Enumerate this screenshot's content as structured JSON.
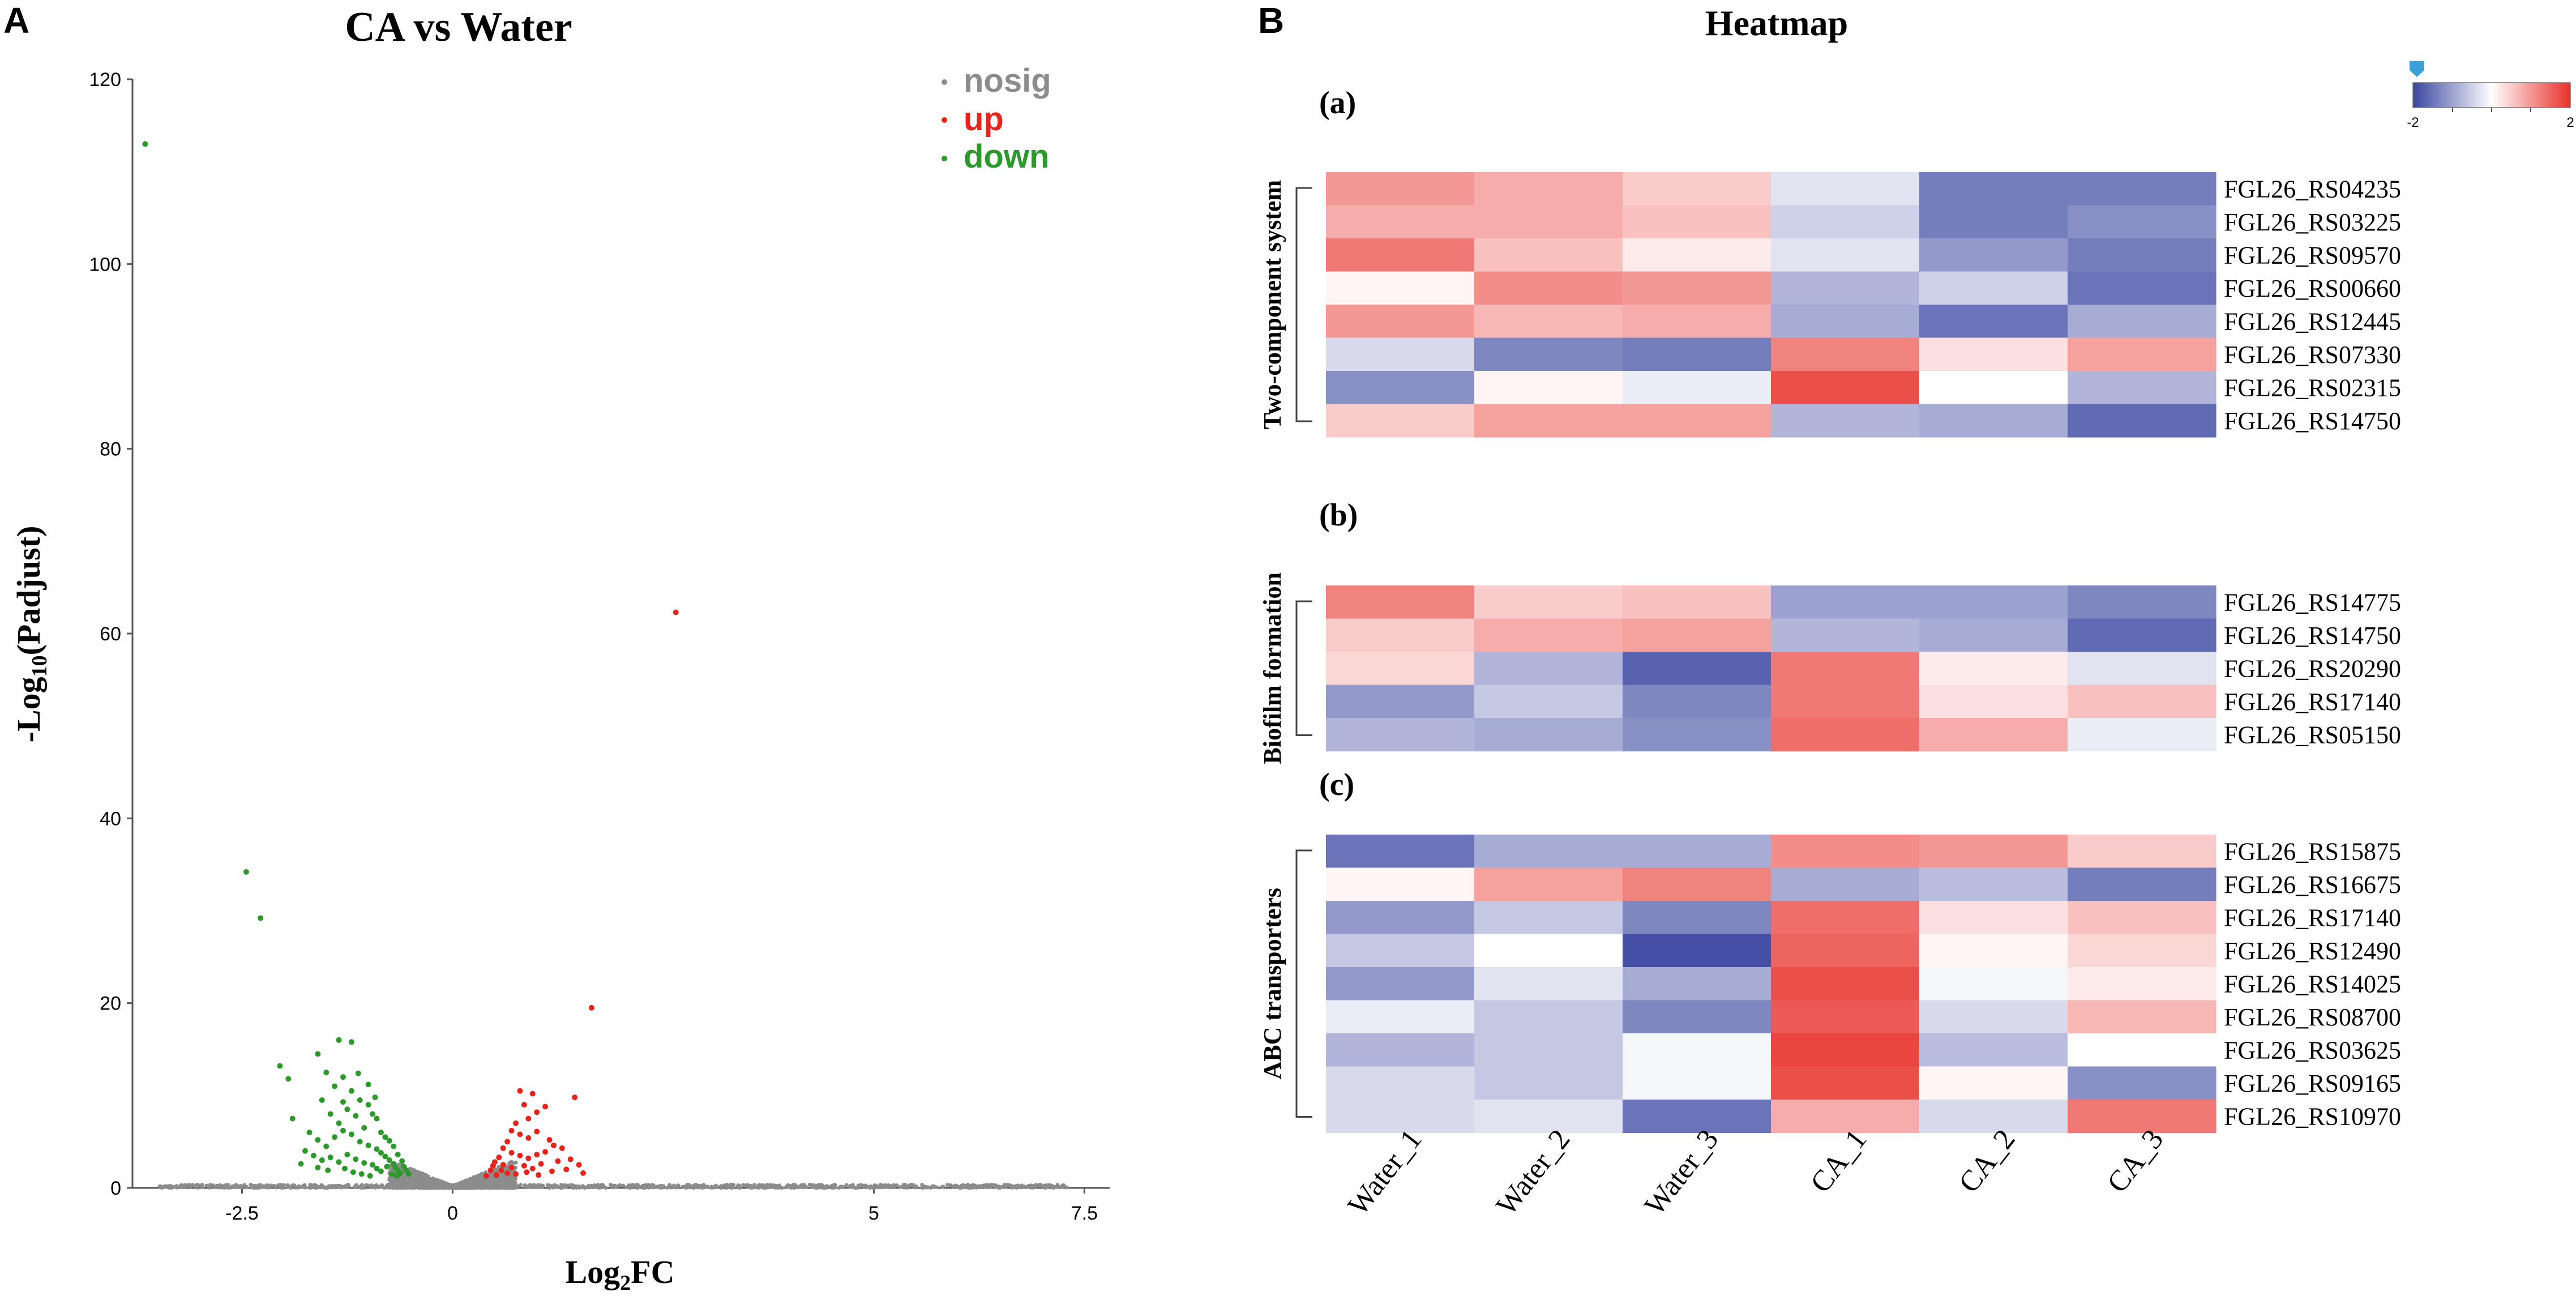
{
  "chart_data": [
    {
      "type": "scatter",
      "panel": "A",
      "title": "CA vs Water",
      "xlabel": "Log2FC",
      "ylabel": "-Log10(Padjust)",
      "xlim": [
        -3.8,
        7.8
      ],
      "ylim": [
        0,
        120
      ],
      "xticks": [
        -2.5,
        0,
        5,
        7.5
      ],
      "xtick_labels": [
        "-2.5",
        "0",
        "5",
        "7.5"
      ],
      "yticks": [
        0,
        20,
        40,
        60,
        80,
        100,
        120
      ],
      "ytick_labels": [
        "0",
        "20",
        "40",
        "60",
        "80",
        "100",
        "120"
      ],
      "legend": [
        {
          "name": "nosig",
          "color": "#8c8c8c"
        },
        {
          "name": "up",
          "color": "#e8231b"
        },
        {
          "name": "down",
          "color": "#2b9a2b"
        }
      ],
      "series": [
        {
          "name": "down",
          "color": "#2b9a2b",
          "points": [
            [
              -3.65,
              113
            ],
            [
              -2.45,
              34.2
            ],
            [
              -2.28,
              29.2
            ],
            [
              -1.9,
              7.5
            ],
            [
              -1.6,
              14.5
            ],
            [
              -1.35,
              16
            ],
            [
              -1.2,
              15.8
            ],
            [
              -1.5,
              12.5
            ],
            [
              -1.4,
              11
            ],
            [
              -1.3,
              12
            ],
            [
              -1.2,
              10.5
            ],
            [
              -1.1,
              9.5
            ],
            [
              -1.0,
              9
            ],
            [
              -0.95,
              8
            ],
            [
              -0.9,
              7.5
            ],
            [
              -1.55,
              9.5
            ],
            [
              -1.45,
              8
            ],
            [
              -1.35,
              7
            ],
            [
              -1.25,
              8.5
            ],
            [
              -1.15,
              7.8
            ],
            [
              -1.05,
              6.5
            ],
            [
              -0.85,
              6
            ],
            [
              -0.8,
              5.5
            ],
            [
              -1.7,
              6
            ],
            [
              -1.6,
              5.2
            ],
            [
              -1.5,
              4.5
            ],
            [
              -1.4,
              5.5
            ],
            [
              -1.3,
              6.2
            ],
            [
              -1.2,
              5.8
            ],
            [
              -1.1,
              5
            ],
            [
              -1.0,
              4.6
            ],
            [
              -0.9,
              4.2
            ],
            [
              -0.85,
              3.8
            ],
            [
              -0.8,
              3.4
            ],
            [
              -0.75,
              3
            ],
            [
              -0.7,
              2.6
            ],
            [
              -0.68,
              2.2
            ],
            [
              -0.65,
              1.9
            ],
            [
              -1.75,
              4
            ],
            [
              -1.65,
              3.5
            ],
            [
              -1.55,
              3
            ],
            [
              -1.45,
              3.3
            ],
            [
              -1.35,
              2.8
            ],
            [
              -1.25,
              3.6
            ],
            [
              -1.15,
              3.1
            ],
            [
              -1.05,
              2.7
            ],
            [
              -0.95,
              2.5
            ],
            [
              -0.9,
              2.1
            ],
            [
              -0.85,
              1.8
            ],
            [
              -0.78,
              2.3
            ],
            [
              -0.72,
              1.5
            ],
            [
              -0.66,
              1.3
            ],
            [
              -0.62,
              1.6
            ],
            [
              -1.8,
              2.6
            ],
            [
              -1.6,
              2.2
            ],
            [
              -1.48,
              1.9
            ],
            [
              -1.28,
              2.1
            ],
            [
              -1.18,
              1.7
            ],
            [
              -1.08,
              1.5
            ],
            [
              -0.98,
              1.3
            ],
            [
              -2.05,
              13.2
            ],
            [
              -1.95,
              11.8
            ],
            [
              -1.0,
              11.2
            ],
            [
              -0.92,
              9.8
            ],
            [
              -1.12,
              12.4
            ],
            [
              -1.3,
              9.3
            ],
            [
              -0.7,
              4.5
            ],
            [
              -0.75,
              5.1
            ],
            [
              -0.65,
              3.6
            ],
            [
              -0.6,
              2.9
            ],
            [
              -0.58,
              2.3
            ],
            [
              -0.55,
              1.9
            ],
            [
              -0.52,
              1.5
            ]
          ]
        },
        {
          "name": "up",
          "color": "#e8231b",
          "points": [
            [
              2.65,
              62.3
            ],
            [
              1.65,
              19.5
            ],
            [
              1.45,
              9.8
            ],
            [
              0.8,
              10.5
            ],
            [
              0.95,
              10.2
            ],
            [
              0.85,
              9
            ],
            [
              1.0,
              8.2
            ],
            [
              1.1,
              8.8
            ],
            [
              0.9,
              7.5
            ],
            [
              0.75,
              7
            ],
            [
              0.7,
              6.2
            ],
            [
              0.8,
              5.8
            ],
            [
              0.9,
              5.4
            ],
            [
              1.0,
              6.1
            ],
            [
              1.15,
              5.2
            ],
            [
              1.2,
              4.6
            ],
            [
              0.65,
              5
            ],
            [
              0.6,
              4.3
            ],
            [
              0.7,
              3.8
            ],
            [
              0.8,
              3.5
            ],
            [
              0.9,
              3.2
            ],
            [
              1.0,
              3.6
            ],
            [
              1.1,
              3.9
            ],
            [
              1.3,
              4.3
            ],
            [
              0.55,
              3.3
            ],
            [
              0.5,
              2.8
            ],
            [
              0.6,
              2.5
            ],
            [
              0.7,
              2.2
            ],
            [
              0.85,
              2.4
            ],
            [
              0.95,
              2.1
            ],
            [
              1.05,
              2.6
            ],
            [
              1.25,
              2.9
            ],
            [
              1.4,
              3.1
            ],
            [
              1.5,
              2.5
            ],
            [
              1.35,
              2.0
            ],
            [
              0.58,
              1.9
            ],
            [
              0.65,
              1.6
            ],
            [
              0.75,
              1.5
            ],
            [
              0.88,
              1.7
            ],
            [
              1.02,
              1.4
            ],
            [
              1.18,
              1.8
            ],
            [
              1.55,
              1.6
            ],
            [
              0.52,
              1.4
            ],
            [
              0.45,
              1.9
            ],
            [
              0.48,
              2.4
            ],
            [
              0.4,
              1.3
            ]
          ]
        },
        {
          "name": "nosig",
          "color": "#8c8c8c",
          "note": "dense cluster of non-significant genes near the origin (approximated)"
        }
      ]
    },
    {
      "type": "heatmap",
      "panel": "B",
      "title": "Heatmap",
      "columns": [
        "Water_1",
        "Water_2",
        "Water_3",
        "CA_1",
        "CA_2",
        "CA_3"
      ],
      "colorbar": {
        "min": -2,
        "max": 2,
        "tick_labels": [
          "-2",
          "2"
        ],
        "low_color": "#3a46a0",
        "mid_color": "#ffffff",
        "high_color": "#e8302a"
      },
      "groups": [
        {
          "tag": "(a)",
          "label": "Two-component system",
          "rows": [
            {
              "gene": "FGL26_RS04235",
              "values": [
                1.0,
                0.8,
                0.5,
                -0.3,
                -1.4,
                -1.4
              ]
            },
            {
              "gene": "FGL26_RS03225",
              "values": [
                0.8,
                0.8,
                0.6,
                -0.5,
                -1.4,
                -1.2
              ]
            },
            {
              "gene": "FGL26_RS09570",
              "values": [
                1.3,
                0.6,
                0.2,
                -0.3,
                -1.1,
                -1.4
              ]
            },
            {
              "gene": "FGL26_RS00660",
              "values": [
                0.1,
                1.1,
                1.0,
                -0.8,
                -0.5,
                -1.5
              ]
            },
            {
              "gene": "FGL26_RS12445",
              "values": [
                1.0,
                0.7,
                0.8,
                -0.9,
                -1.5,
                -0.9
              ]
            },
            {
              "gene": "FGL26_RS07330",
              "values": [
                -0.4,
                -1.3,
                -1.4,
                1.2,
                0.3,
                0.9
              ]
            },
            {
              "gene": "FGL26_RS02315",
              "values": [
                -1.2,
                0.1,
                -0.2,
                1.7,
                0.0,
                -0.8
              ]
            },
            {
              "gene": "FGL26_RS14750",
              "values": [
                0.5,
                0.9,
                0.9,
                -0.8,
                -0.9,
                -1.6
              ]
            }
          ]
        },
        {
          "tag": "(b)",
          "label": "Biofilm formation",
          "rows": [
            {
              "gene": "FGL26_RS14775",
              "values": [
                1.2,
                0.5,
                0.6,
                -1.0,
                -1.0,
                -1.3
              ]
            },
            {
              "gene": "FGL26_RS14750",
              "values": [
                0.5,
                0.8,
                0.9,
                -0.8,
                -0.9,
                -1.6
              ]
            },
            {
              "gene": "FGL26_RS20290",
              "values": [
                0.4,
                -0.8,
                -1.7,
                1.3,
                0.2,
                -0.3
              ]
            },
            {
              "gene": "FGL26_RS17140",
              "values": [
                -1.1,
                -0.6,
                -1.3,
                1.3,
                0.3,
                0.6
              ]
            },
            {
              "gene": "FGL26_RS05150",
              "values": [
                -0.8,
                -0.9,
                -1.2,
                1.4,
                0.8,
                -0.2
              ]
            }
          ]
        },
        {
          "tag": "(c)",
          "label": "ABC transporters",
          "rows": [
            {
              "gene": "FGL26_RS15875",
              "values": [
                -1.5,
                -0.9,
                -0.9,
                1.1,
                1.0,
                0.5
              ]
            },
            {
              "gene": "FGL26_RS16675",
              "values": [
                0.1,
                0.9,
                1.2,
                -0.9,
                -0.7,
                -1.4
              ]
            },
            {
              "gene": "FGL26_RS17140",
              "values": [
                -1.1,
                -0.6,
                -1.3,
                1.4,
                0.3,
                0.6
              ]
            },
            {
              "gene": "FGL26_RS12490",
              "values": [
                -0.6,
                0.0,
                -1.9,
                1.5,
                0.1,
                0.4
              ]
            },
            {
              "gene": "FGL26_RS14025",
              "values": [
                -1.1,
                -0.3,
                -0.9,
                1.7,
                -0.1,
                0.2
              ]
            },
            {
              "gene": "FGL26_RS08700",
              "values": [
                -0.2,
                -0.6,
                -1.3,
                1.6,
                -0.4,
                0.7
              ]
            },
            {
              "gene": "FGL26_RS03625",
              "values": [
                -0.8,
                -0.6,
                -0.1,
                1.8,
                -0.7,
                0.0
              ]
            },
            {
              "gene": "FGL26_RS09165",
              "values": [
                -0.4,
                -0.6,
                -0.1,
                1.7,
                0.1,
                -1.2
              ]
            },
            {
              "gene": "FGL26_RS10970",
              "values": [
                -0.4,
                -0.3,
                -1.5,
                0.8,
                -0.4,
                1.3
              ]
            }
          ]
        }
      ]
    }
  ],
  "panels": {
    "left_letter": "A",
    "right_letter": "B"
  }
}
